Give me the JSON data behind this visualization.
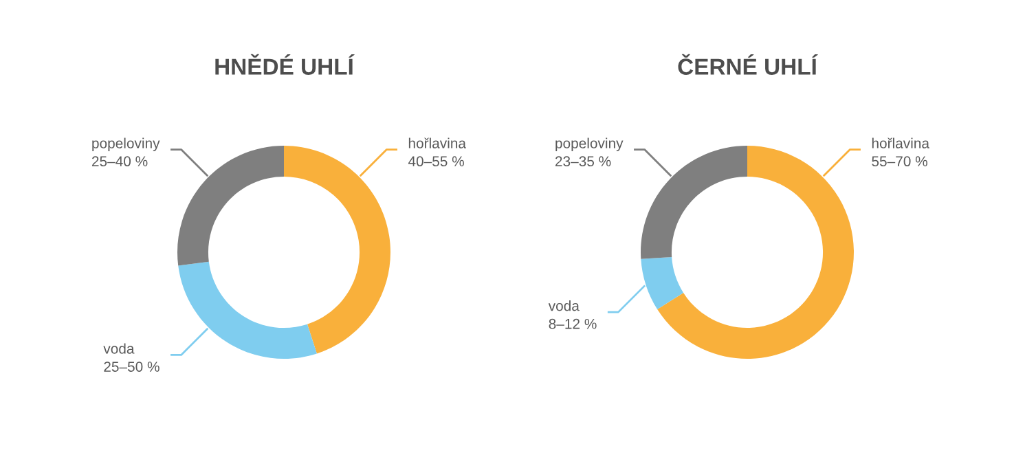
{
  "chart_data": [
    {
      "type": "donut",
      "title": "HNĚDÉ UHLÍ",
      "categories": [
        "hořlavina",
        "voda",
        "popeloviny"
      ],
      "values": [
        45,
        28,
        27
      ],
      "colors": [
        "#f9b03b",
        "#7fcdef",
        "#7f7f7f"
      ],
      "annotations": [
        "40–55 %",
        "25–50 %",
        "25–40 %"
      ]
    },
    {
      "type": "donut",
      "title": "ČERNÉ UHLÍ",
      "categories": [
        "hořlavina",
        "voda",
        "popeloviny"
      ],
      "values": [
        66,
        8,
        26
      ],
      "colors": [
        "#f9b03b",
        "#7fcdef",
        "#7f7f7f"
      ],
      "annotations": [
        "55–70 %",
        "8–12 %",
        "23–35 %"
      ]
    }
  ]
}
